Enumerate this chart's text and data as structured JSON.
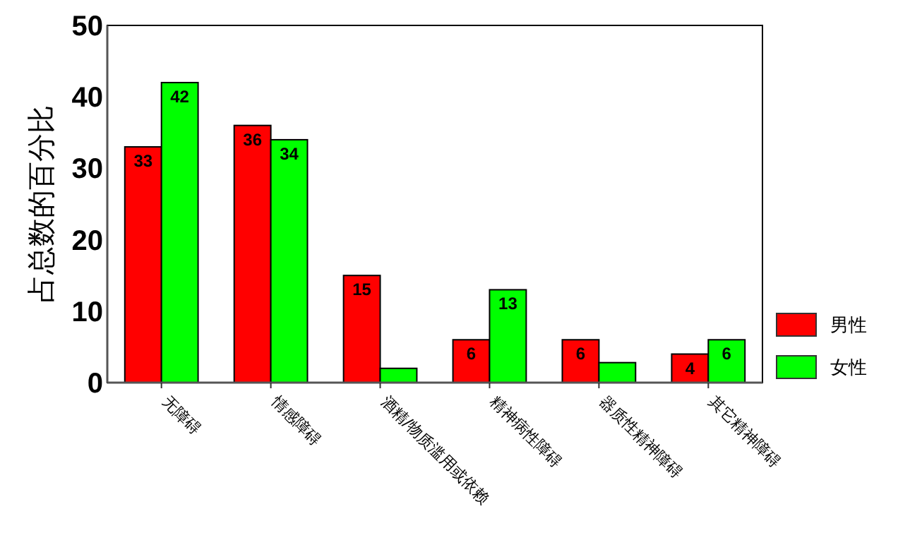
{
  "chart_data": {
    "type": "bar",
    "ylabel": "占总数的百分比",
    "categories": [
      "无障碍",
      "情感障碍",
      "酒精/物质滥用或依赖",
      "精神病性障碍",
      "器质性精神障碍",
      "其它精神障碍"
    ],
    "series": [
      {
        "name": "男性",
        "color": "#ff0000",
        "values": [
          33,
          36,
          15,
          6,
          6,
          4
        ],
        "value_labels": [
          "33",
          "36",
          "15",
          "6",
          "6",
          "4"
        ]
      },
      {
        "name": "女性",
        "color": "#00ff00",
        "values": [
          42,
          34,
          2,
          13,
          2.8,
          6
        ],
        "value_labels": [
          "42",
          "34",
          null,
          "13",
          null,
          "6"
        ]
      }
    ],
    "ylim": [
      0,
      50
    ],
    "yticks": [
      0,
      10,
      20,
      30,
      40,
      50
    ],
    "legend": "right",
    "grid": false
  }
}
